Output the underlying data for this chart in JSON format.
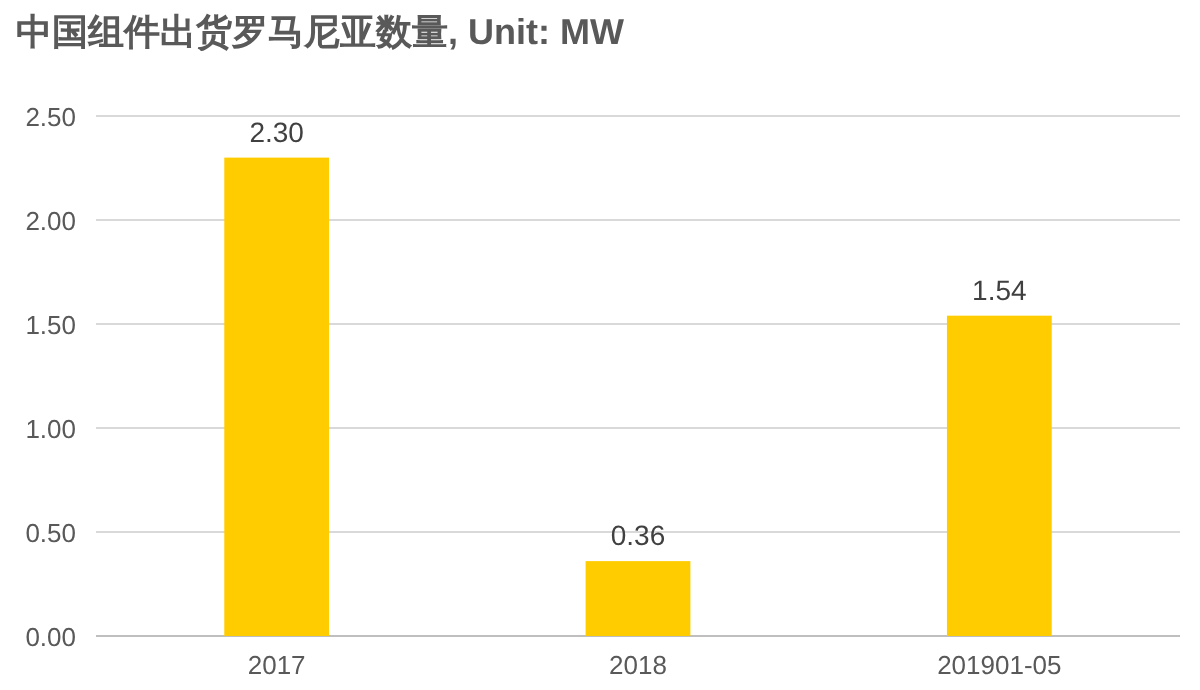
{
  "chart_data": {
    "type": "bar",
    "title": "中国组件出货罗马尼亚数量, Unit: MW",
    "categories": [
      "2017",
      "2018",
      "201901-05"
    ],
    "values": [
      2.3,
      0.36,
      1.54
    ],
    "value_labels": [
      "2.30",
      "0.36",
      "1.54"
    ],
    "color": "#ffcc00",
    "ylim": [
      0,
      2.5
    ],
    "yticks": [
      {
        "value": 0,
        "label": "0.00"
      },
      {
        "value": 0.5,
        "label": "0.50"
      },
      {
        "value": 1,
        "label": "1.00"
      },
      {
        "value": 1.5,
        "label": "1.50"
      },
      {
        "value": 2,
        "label": "2.00"
      },
      {
        "value": 2.5,
        "label": "2.50"
      }
    ],
    "grid": "y"
  }
}
